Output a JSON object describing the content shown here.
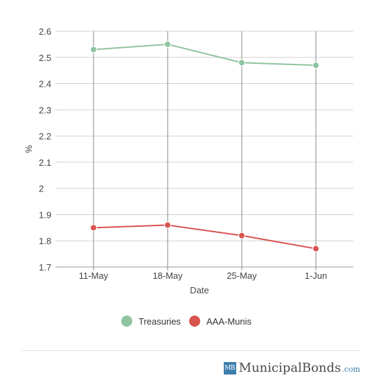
{
  "chart_data": {
    "type": "line",
    "categories": [
      "11-May",
      "18-May",
      "25-May",
      "1-Jun"
    ],
    "series": [
      {
        "name": "Treasuries",
        "values": [
          2.53,
          2.55,
          2.48,
          2.47
        ],
        "color": "#8fc4a0"
      },
      {
        "name": "AAA-Munis",
        "values": [
          1.85,
          1.86,
          1.82,
          1.77
        ],
        "color": "#d9534f"
      }
    ],
    "xlabel": "Date",
    "ylabel": "%",
    "ylim": [
      1.7,
      2.6
    ],
    "yticks": [
      {
        "value": 1.7,
        "label": "1.7"
      },
      {
        "value": 1.8,
        "label": "1.8"
      },
      {
        "value": 1.9,
        "label": "1.9"
      },
      {
        "value": 2.0,
        "label": "2"
      },
      {
        "value": 2.1,
        "label": "2.1"
      },
      {
        "value": 2.2,
        "label": "2.2"
      },
      {
        "value": 2.3,
        "label": "2.3"
      },
      {
        "value": 2.4,
        "label": "2.4"
      },
      {
        "value": 2.5,
        "label": "2.5"
      },
      {
        "value": 2.6,
        "label": "2.6"
      }
    ],
    "grid": true,
    "legend": "bottom-center"
  },
  "branding": {
    "mark": "MB",
    "name": "MunicipalBonds",
    "tld": ".com"
  }
}
